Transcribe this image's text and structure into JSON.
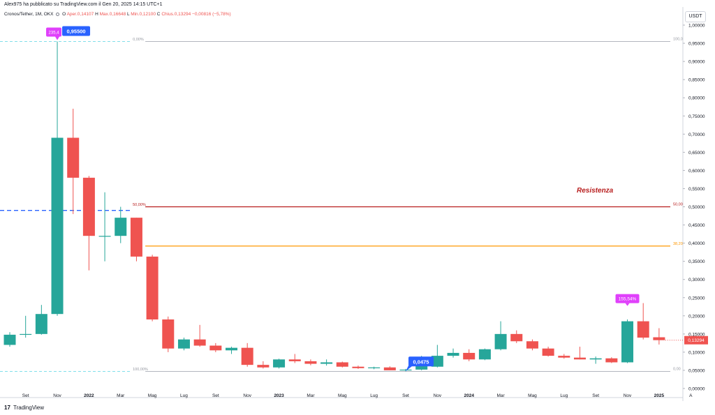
{
  "header": {
    "published": "Alex975 ha pubblicato su TradingView.com il Gen 20, 2025 14:15 UTC+1",
    "symbol": "Cronos/Tether, 1M, OKX",
    "open_label": "O",
    "open": "Aper.0,14107",
    "high_label": "H",
    "high": "Max.0,16648",
    "low_label": "L",
    "low": "Min.0,12100",
    "close_label": "C",
    "close": "Chius.0,13294",
    "change": "−0,00816 (−5,78%)",
    "currency": "USDT"
  },
  "brand": {
    "logo": "17",
    "name": "TradingView"
  },
  "colors": {
    "up": "#26a69a",
    "down": "#ef5350",
    "resistance": "#b71c1c",
    "fib382": "#ff9800",
    "price_tag": "#ef5350",
    "callout_blue": "#2962ff",
    "callout_magenta": "#e040fb"
  },
  "chart_data": {
    "type": "candlestick",
    "y_axis": {
      "min": 0,
      "max": 1.0,
      "ticks": [
        "1,00000",
        "0,95000",
        "0,90000",
        "0,85000",
        "0,80000",
        "0,75000",
        "0,70000",
        "0,65000",
        "0,60000",
        "0,55000",
        "0,50000",
        "0,45000",
        "0,40000",
        "0,35000",
        "0,30000",
        "0,25000",
        "0,20000",
        "0,15000",
        "0,10000",
        "0,05000",
        "0,00000"
      ]
    },
    "x_labels": [
      {
        "i": 1,
        "label": "Set"
      },
      {
        "i": 3,
        "label": "Nov"
      },
      {
        "i": 5,
        "label": "2022"
      },
      {
        "i": 7,
        "label": "Mar"
      },
      {
        "i": 9,
        "label": "Mag"
      },
      {
        "i": 11,
        "label": "Lug"
      },
      {
        "i": 13,
        "label": "Set"
      },
      {
        "i": 15,
        "label": "Nov"
      },
      {
        "i": 17,
        "label": "2023"
      },
      {
        "i": 19,
        "label": "Mar"
      },
      {
        "i": 21,
        "label": "Mag"
      },
      {
        "i": 23,
        "label": "Lug"
      },
      {
        "i": 25,
        "label": "Set"
      },
      {
        "i": 27,
        "label": "Nov"
      },
      {
        "i": 29,
        "label": "2024"
      },
      {
        "i": 31,
        "label": "Mar"
      },
      {
        "i": 33,
        "label": "Mag"
      },
      {
        "i": 35,
        "label": "Lug"
      },
      {
        "i": 37,
        "label": "Set"
      },
      {
        "i": 39,
        "label": "Nov"
      },
      {
        "i": 41,
        "label": "2025"
      },
      {
        "i": 43,
        "label": "A"
      }
    ],
    "candles": [
      {
        "o": 0.12,
        "h": 0.155,
        "l": 0.115,
        "c": 0.148
      },
      {
        "o": 0.148,
        "h": 0.2,
        "l": 0.14,
        "c": 0.15
      },
      {
        "o": 0.15,
        "h": 0.23,
        "l": 0.148,
        "c": 0.205
      },
      {
        "o": 0.205,
        "h": 0.955,
        "l": 0.2,
        "c": 0.69
      },
      {
        "o": 0.69,
        "h": 0.77,
        "l": 0.48,
        "c": 0.58
      },
      {
        "o": 0.58,
        "h": 0.585,
        "l": 0.325,
        "c": 0.42
      },
      {
        "o": 0.42,
        "h": 0.54,
        "l": 0.35,
        "c": 0.42
      },
      {
        "o": 0.42,
        "h": 0.5,
        "l": 0.4,
        "c": 0.47
      },
      {
        "o": 0.47,
        "h": 0.47,
        "l": 0.35,
        "c": 0.363
      },
      {
        "o": 0.363,
        "h": 0.368,
        "l": 0.185,
        "c": 0.19
      },
      {
        "o": 0.19,
        "h": 0.198,
        "l": 0.1,
        "c": 0.11
      },
      {
        "o": 0.11,
        "h": 0.14,
        "l": 0.105,
        "c": 0.135
      },
      {
        "o": 0.135,
        "h": 0.175,
        "l": 0.115,
        "c": 0.118
      },
      {
        "o": 0.118,
        "h": 0.125,
        "l": 0.1,
        "c": 0.105
      },
      {
        "o": 0.105,
        "h": 0.115,
        "l": 0.095,
        "c": 0.112
      },
      {
        "o": 0.112,
        "h": 0.125,
        "l": 0.06,
        "c": 0.065
      },
      {
        "o": 0.065,
        "h": 0.075,
        "l": 0.055,
        "c": 0.058
      },
      {
        "o": 0.058,
        "h": 0.082,
        "l": 0.055,
        "c": 0.08
      },
      {
        "o": 0.08,
        "h": 0.095,
        "l": 0.07,
        "c": 0.075
      },
      {
        "o": 0.075,
        "h": 0.08,
        "l": 0.064,
        "c": 0.068
      },
      {
        "o": 0.068,
        "h": 0.08,
        "l": 0.063,
        "c": 0.072
      },
      {
        "o": 0.072,
        "h": 0.074,
        "l": 0.058,
        "c": 0.06
      },
      {
        "o": 0.06,
        "h": 0.063,
        "l": 0.054,
        "c": 0.056
      },
      {
        "o": 0.056,
        "h": 0.06,
        "l": 0.053,
        "c": 0.058
      },
      {
        "o": 0.058,
        "h": 0.061,
        "l": 0.05,
        "c": 0.05
      },
      {
        "o": 0.05,
        "h": 0.054,
        "l": 0.0475,
        "c": 0.052
      },
      {
        "o": 0.052,
        "h": 0.09,
        "l": 0.05,
        "c": 0.085
      },
      {
        "o": 0.06,
        "h": 0.12,
        "l": 0.058,
        "c": 0.09
      },
      {
        "o": 0.09,
        "h": 0.11,
        "l": 0.085,
        "c": 0.098
      },
      {
        "o": 0.098,
        "h": 0.108,
        "l": 0.075,
        "c": 0.08
      },
      {
        "o": 0.08,
        "h": 0.11,
        "l": 0.078,
        "c": 0.108
      },
      {
        "o": 0.108,
        "h": 0.185,
        "l": 0.105,
        "c": 0.15
      },
      {
        "o": 0.15,
        "h": 0.16,
        "l": 0.125,
        "c": 0.13
      },
      {
        "o": 0.13,
        "h": 0.135,
        "l": 0.105,
        "c": 0.11
      },
      {
        "o": 0.11,
        "h": 0.115,
        "l": 0.088,
        "c": 0.09
      },
      {
        "o": 0.09,
        "h": 0.095,
        "l": 0.082,
        "c": 0.085
      },
      {
        "o": 0.085,
        "h": 0.115,
        "l": 0.08,
        "c": 0.08
      },
      {
        "o": 0.08,
        "h": 0.088,
        "l": 0.068,
        "c": 0.083
      },
      {
        "o": 0.083,
        "h": 0.086,
        "l": 0.07,
        "c": 0.072
      },
      {
        "o": 0.072,
        "h": 0.19,
        "l": 0.07,
        "c": 0.185
      },
      {
        "o": 0.185,
        "h": 0.235,
        "l": 0.135,
        "c": 0.14
      },
      {
        "o": 0.141,
        "h": 0.166,
        "l": 0.121,
        "c": 0.133
      }
    ],
    "fib_levels": [
      {
        "label": "0,00%",
        "right_label": "100,0",
        "value": 0.955,
        "color": "#b2b5be"
      },
      {
        "label": "50,00%",
        "right_label": "50,00",
        "value": 0.5,
        "color": "#b71c1c"
      },
      {
        "label": "",
        "right_label": "38,20",
        "value": 0.392,
        "color": "#ff9800"
      },
      {
        "label": "100,00%",
        "right_label": "0,00",
        "value": 0.047,
        "color": "#b2b5be"
      }
    ],
    "annotations": {
      "resistance": "Resistenza",
      "high_callout": "0,95500",
      "high_pct": "235,4",
      "low_callout": "0,0475",
      "recent_pct": "155,54%",
      "last_price": "0,13294"
    }
  }
}
